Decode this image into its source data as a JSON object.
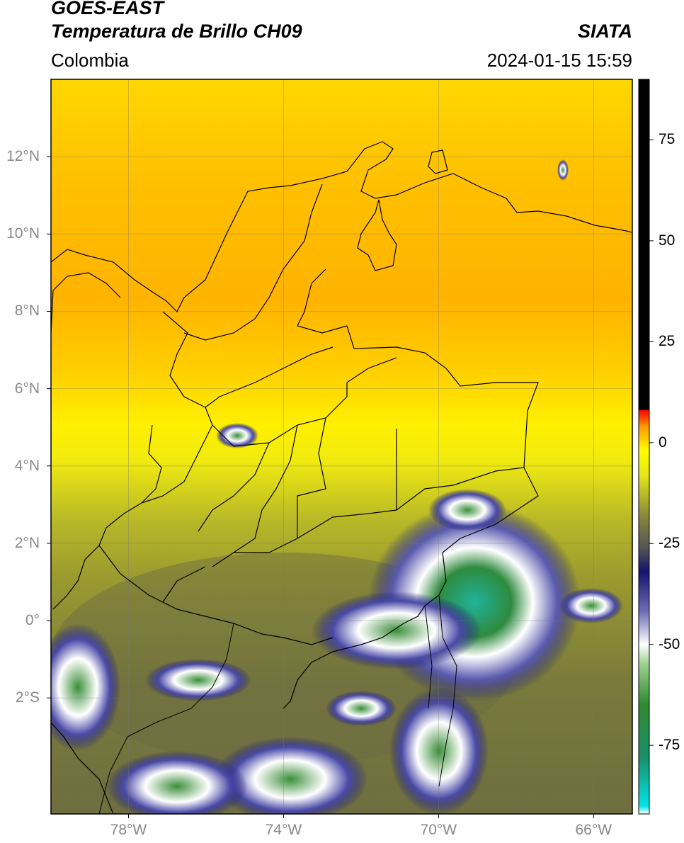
{
  "header": {
    "title_line1": "GOES-EAST",
    "title_line2": "Temperatura de Brillo CH09",
    "region": "Colombia",
    "source": "SIATA",
    "datetime": "2024-01-15 15:59"
  },
  "map": {
    "lon_range": [
      -80,
      -65
    ],
    "lat_range": [
      -5,
      14
    ],
    "lat_ticks": [
      {
        "value": 12,
        "label": "12°N"
      },
      {
        "value": 10,
        "label": "10°N"
      },
      {
        "value": 8,
        "label": "8°N"
      },
      {
        "value": 6,
        "label": "6°N"
      },
      {
        "value": 4,
        "label": "4°N"
      },
      {
        "value": 2,
        "label": "2°N"
      },
      {
        "value": 0,
        "label": "0°"
      },
      {
        "value": -2,
        "label": "2°S"
      }
    ],
    "lon_ticks": [
      {
        "value": -78,
        "label": "78°W"
      },
      {
        "value": -74,
        "label": "74°W"
      },
      {
        "value": -70,
        "label": "70°W"
      },
      {
        "value": -66,
        "label": "66°W"
      }
    ],
    "grid": true
  },
  "colorbar": {
    "range": [
      -92,
      90
    ],
    "ticks": [
      {
        "value": 75,
        "label": "75"
      },
      {
        "value": 50,
        "label": "50"
      },
      {
        "value": 25,
        "label": "25"
      },
      {
        "value": 0,
        "label": "0"
      },
      {
        "value": -25,
        "label": "-25"
      },
      {
        "value": -50,
        "label": "-50"
      },
      {
        "value": -75,
        "label": "-75"
      }
    ],
    "stops": [
      {
        "value": -92,
        "color": "#ffffff"
      },
      {
        "value": -90,
        "color": "#00e5e5"
      },
      {
        "value": -78,
        "color": "#1a8f6a"
      },
      {
        "value": -65,
        "color": "#2e8b2e"
      },
      {
        "value": -55,
        "color": "#9ccf8c"
      },
      {
        "value": -50,
        "color": "#ffffff"
      },
      {
        "value": -42,
        "color": "#6f6fb8"
      },
      {
        "value": -32,
        "color": "#141470"
      },
      {
        "value": -26,
        "color": "#555555"
      },
      {
        "value": -18,
        "color": "#8a8a3a"
      },
      {
        "value": -8,
        "color": "#e6e619"
      },
      {
        "value": -2,
        "color": "#ffff00"
      },
      {
        "value": 4,
        "color": "#ff9900"
      },
      {
        "value": 8,
        "color": "#ff0000"
      },
      {
        "value": 8.01,
        "color": "#000000"
      },
      {
        "value": 90,
        "color": "#000000"
      }
    ]
  }
}
